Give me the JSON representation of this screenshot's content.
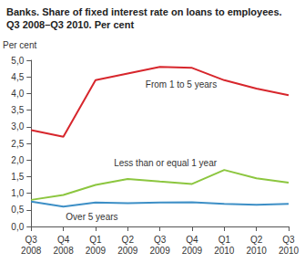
{
  "chart_data": {
    "type": "line",
    "title": "Banks. Share of fixed interest rate on loans to employees.",
    "subtitle": "Q3 2008–Q3 2010. Per cent",
    "y_label": "Per cent",
    "categories": [
      "Q3 2008",
      "Q4 2008",
      "Q1 2009",
      "Q2 2009",
      "Q3 2009",
      "Q4 2009",
      "Q1 2010",
      "Q2 2010",
      "Q3 2010"
    ],
    "series": [
      {
        "name": "From 1 to 5 years",
        "color": "#d7262c",
        "values": [
          2.9,
          2.7,
          4.4,
          4.6,
          4.8,
          4.77,
          4.4,
          4.15,
          3.95
        ]
      },
      {
        "name": "Less than or equal 1 year",
        "color": "#8cc63f",
        "values": [
          0.8,
          0.95,
          1.25,
          1.43,
          1.35,
          1.28,
          1.7,
          1.45,
          1.32
        ]
      },
      {
        "name": "Over 5 years",
        "color": "#3d8fc6",
        "values": [
          0.75,
          0.6,
          0.72,
          0.7,
          0.72,
          0.73,
          0.68,
          0.65,
          0.68
        ]
      }
    ],
    "ylim": [
      0,
      5
    ],
    "yticks": [
      {
        "value": 0,
        "label": "0,0"
      },
      {
        "value": 0.5,
        "label": "0,5"
      },
      {
        "value": 1,
        "label": "1,0"
      },
      {
        "value": 1.5,
        "label": "1,5"
      },
      {
        "value": 2,
        "label": "2,0"
      },
      {
        "value": 2.5,
        "label": "2,5"
      },
      {
        "value": 3,
        "label": "3,0"
      },
      {
        "value": 3.5,
        "label": "3,5"
      },
      {
        "value": 4,
        "label": "4,0"
      },
      {
        "value": 4.5,
        "label": "4,5"
      },
      {
        "value": 5,
        "label": "5,0"
      }
    ],
    "grid": false
  }
}
